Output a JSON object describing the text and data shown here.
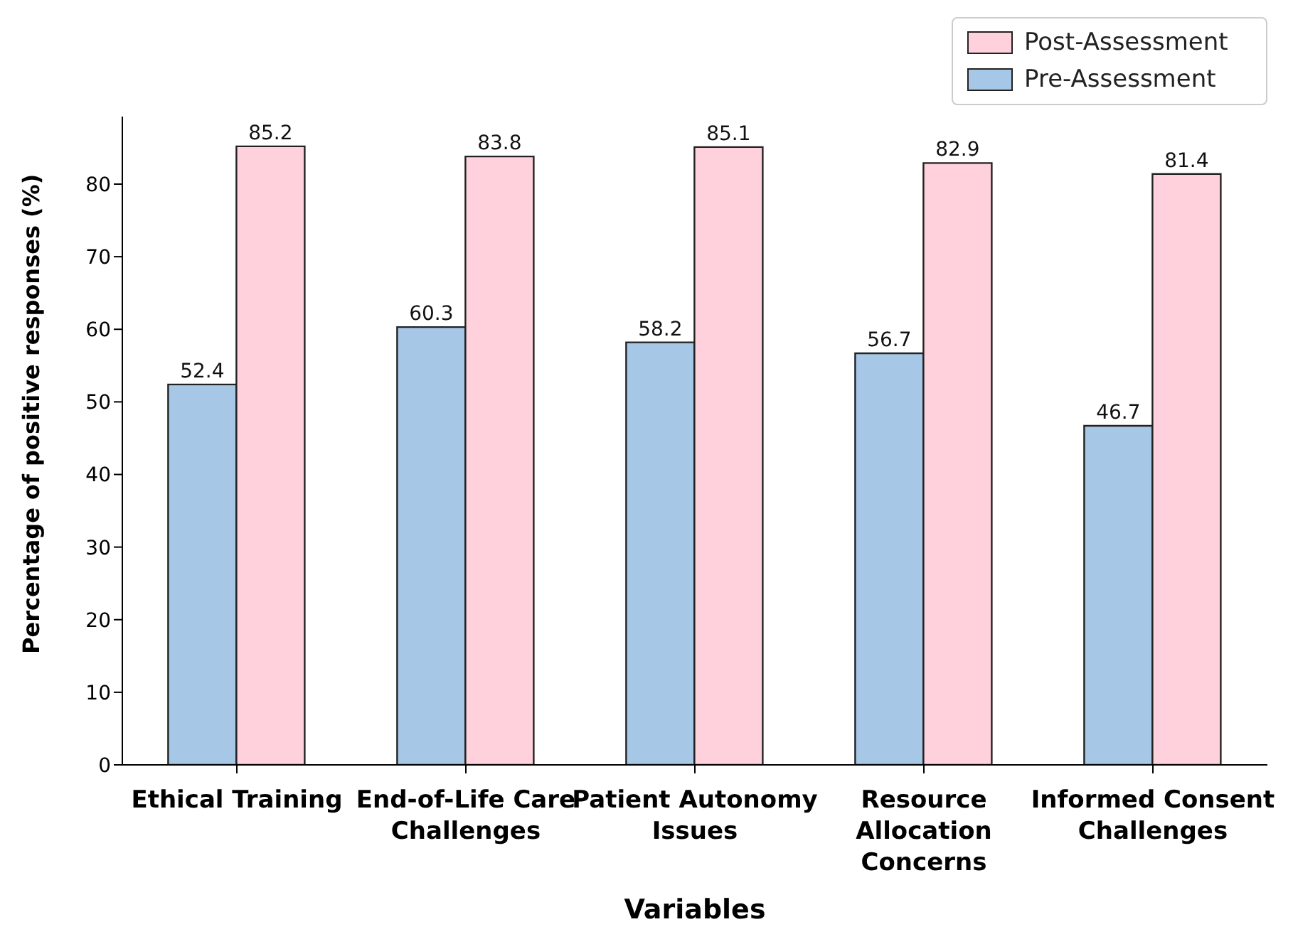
{
  "chart_data": {
    "type": "bar",
    "xlabel": "Variables",
    "ylabel": "Percentage of positive responses (%)",
    "categories": [
      "Ethical Training",
      "End-of-Life Care Challenges",
      "Patient Autonomy Issues",
      "Resource Allocation Concerns",
      "Informed Consent Challenges"
    ],
    "series": [
      {
        "name": "Pre-Assessment",
        "color": "#a7c7e7",
        "values": [
          52.4,
          60.3,
          58.2,
          56.7,
          46.7
        ]
      },
      {
        "name": "Post-Assessment",
        "color": "#ffd1dc",
        "values": [
          85.2,
          83.8,
          85.1,
          82.9,
          81.4
        ]
      }
    ],
    "ylim": [
      0,
      89.3
    ],
    "yticks": [
      0,
      10,
      20,
      30,
      40,
      50,
      60,
      70,
      80
    ],
    "data_labels": true,
    "legend": "top right",
    "grid": false
  }
}
